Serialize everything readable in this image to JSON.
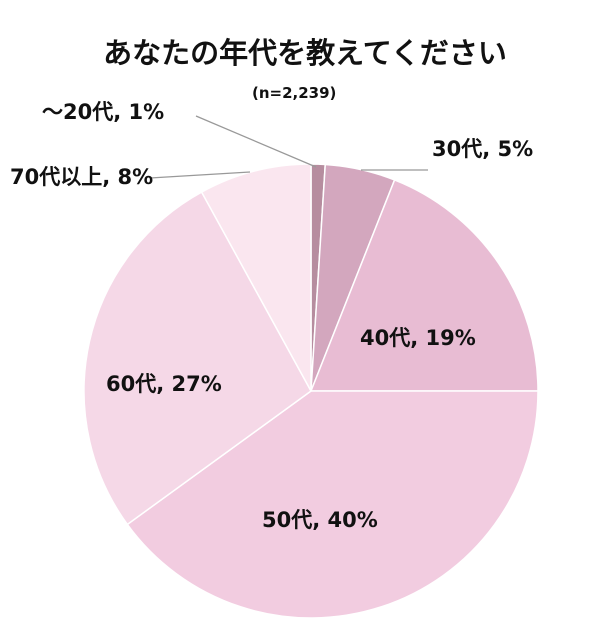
{
  "chart_data": {
    "type": "pie",
    "title": "あなたの年代を教えてください",
    "subtitle": "(n=2,239)",
    "categories": [
      "～20代",
      "30代",
      "40代",
      "50代",
      "60代",
      "70代以上"
    ],
    "values": [
      1,
      5,
      19,
      40,
      27,
      8
    ],
    "labels": [
      "～20代, 1%",
      "30代, 5%",
      "40代, 19%",
      "50代, 40%",
      "60代, 27%",
      "70代以上, 8%"
    ],
    "colors": [
      "#b68d9f",
      "#d3a7be",
      "#e8bcd3",
      "#f2cce0",
      "#f5d8e7",
      "#fae6ef"
    ],
    "start": "top",
    "direction": "clockwise"
  }
}
